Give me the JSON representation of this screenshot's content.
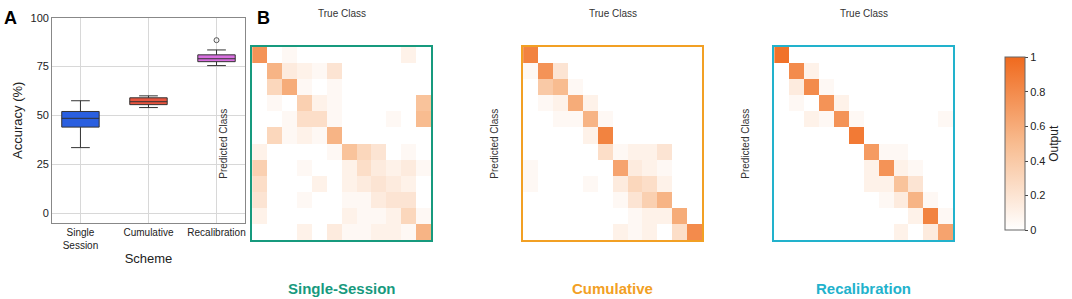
{
  "chart_data": [
    {
      "type": "box",
      "panel": "A",
      "x_label": "Scheme",
      "y_label": "Accuracy (%)",
      "categories": [
        "Single Session",
        "Cumulative",
        "Recalibration"
      ],
      "series": [
        {
          "name": "Single Session",
          "color": "#2a5fe0",
          "min": 33.5,
          "q1": 44,
          "median": 48.5,
          "q3": 52,
          "max": 57.5,
          "outliers": []
        },
        {
          "name": "Cumulative",
          "color": "#e9553f",
          "min": 54,
          "q1": 55.5,
          "median": 57,
          "q3": 59,
          "max": 60,
          "outliers": []
        },
        {
          "name": "Recalibration",
          "color": "#d870e0",
          "min": 75.5,
          "q1": 77.5,
          "median": 79,
          "q3": 81,
          "max": 83.5,
          "outliers": [
            88.5
          ]
        }
      ],
      "ylim": [
        -5,
        100
      ],
      "yticks": [
        0,
        25,
        50,
        75,
        100
      ],
      "grid": true
    },
    {
      "type": "heatmap",
      "panel": "B",
      "title": "Single-Session",
      "color": "#179a7e",
      "x_label": "True Class",
      "y_label": "Predicted Class",
      "tick_labels": false,
      "cells": [
        [
          0.75,
          0,
          0.05,
          0,
          0,
          0,
          0,
          0,
          0,
          0,
          0.1,
          0
        ],
        [
          0,
          0.55,
          0.15,
          0.1,
          0.05,
          0.2,
          0,
          0,
          0,
          0,
          0,
          0
        ],
        [
          0,
          0.3,
          0.6,
          0.05,
          0,
          0.05,
          0,
          0,
          0,
          0,
          0,
          0
        ],
        [
          0,
          0.05,
          0,
          0.35,
          0.1,
          0.05,
          0,
          0,
          0,
          0,
          0,
          0.45
        ],
        [
          0,
          0,
          0.05,
          0.25,
          0.25,
          0.05,
          0,
          0,
          0,
          0.05,
          0,
          0.5
        ],
        [
          0,
          0.3,
          0.05,
          0.1,
          0.05,
          0.55,
          0,
          0,
          0,
          0,
          0,
          0
        ],
        [
          0.1,
          0,
          0,
          0,
          0,
          0.05,
          0.45,
          0.3,
          0.2,
          0,
          0.05,
          0
        ],
        [
          0.35,
          0,
          0,
          0.05,
          0,
          0,
          0.1,
          0.25,
          0.15,
          0.1,
          0.15,
          0.05
        ],
        [
          0.25,
          0,
          0,
          0,
          0.1,
          0,
          0.1,
          0.15,
          0.2,
          0.15,
          0.1,
          0
        ],
        [
          0.2,
          0,
          0,
          0.05,
          0,
          0,
          0.05,
          0.05,
          0.15,
          0.2,
          0.2,
          0
        ],
        [
          0.1,
          0,
          0,
          0,
          0,
          0,
          0.1,
          0.05,
          0.05,
          0.1,
          0.3,
          0.05
        ],
        [
          0,
          0,
          0,
          0.1,
          0,
          0.15,
          0.05,
          0.05,
          0.1,
          0.1,
          0.05,
          0.55
        ]
      ]
    },
    {
      "type": "heatmap",
      "panel": null,
      "title": "Cumulative",
      "color": "#f2a024",
      "x_label": "True Class",
      "y_label": "Predicted Class",
      "tick_labels": false,
      "cells": [
        [
          0.85,
          0,
          0,
          0,
          0,
          0,
          0,
          0,
          0,
          0,
          0,
          0
        ],
        [
          0.05,
          0.75,
          0.2,
          0,
          0,
          0,
          0,
          0,
          0,
          0,
          0,
          0
        ],
        [
          0,
          0.4,
          0.5,
          0.05,
          0,
          0,
          0,
          0,
          0,
          0,
          0,
          0
        ],
        [
          0,
          0.05,
          0.1,
          0.6,
          0.1,
          0,
          0,
          0,
          0,
          0,
          0,
          0
        ],
        [
          0,
          0,
          0.05,
          0.05,
          0.55,
          0.05,
          0,
          0,
          0,
          0,
          0,
          0
        ],
        [
          0,
          0,
          0,
          0,
          0.1,
          0.85,
          0,
          0,
          0,
          0,
          0,
          0
        ],
        [
          0,
          0,
          0,
          0,
          0,
          0.25,
          0.05,
          0.1,
          0.1,
          0.2,
          0,
          0
        ],
        [
          0.05,
          0,
          0,
          0,
          0,
          0,
          0.65,
          0.15,
          0.1,
          0.05,
          0,
          0
        ],
        [
          0.05,
          0,
          0,
          0,
          0.05,
          0,
          0.15,
          0.3,
          0.25,
          0.1,
          0,
          0
        ],
        [
          0,
          0,
          0,
          0,
          0,
          0,
          0.05,
          0.2,
          0.35,
          0.55,
          0,
          0
        ],
        [
          0,
          0,
          0,
          0,
          0,
          0,
          0,
          0.05,
          0.1,
          0.1,
          0.6,
          0
        ],
        [
          0,
          0,
          0,
          0,
          0,
          0,
          0.1,
          0.05,
          0.1,
          0,
          0.25,
          0.8
        ]
      ]
    },
    {
      "type": "heatmap",
      "panel": null,
      "title": "Recalibration",
      "color": "#22b2cc",
      "x_label": "True Class",
      "y_label": "Predicted Class",
      "tick_labels": false,
      "cells": [
        [
          0.95,
          0,
          0,
          0,
          0,
          0,
          0,
          0,
          0,
          0,
          0,
          0
        ],
        [
          0,
          0.8,
          0.1,
          0,
          0,
          0,
          0,
          0,
          0,
          0,
          0,
          0
        ],
        [
          0,
          0.15,
          0.8,
          0.05,
          0,
          0,
          0,
          0,
          0,
          0,
          0,
          0
        ],
        [
          0,
          0.05,
          0,
          0.75,
          0.1,
          0,
          0,
          0,
          0,
          0,
          0,
          0
        ],
        [
          0,
          0,
          0.1,
          0.05,
          0.75,
          0.05,
          0,
          0,
          0,
          0,
          0,
          0.05
        ],
        [
          0,
          0,
          0,
          0,
          0,
          0.9,
          0,
          0,
          0,
          0,
          0,
          0
        ],
        [
          0,
          0,
          0,
          0,
          0,
          0,
          0.7,
          0.05,
          0.05,
          0,
          0,
          0
        ],
        [
          0,
          0,
          0,
          0,
          0,
          0,
          0.1,
          0.75,
          0.1,
          0.05,
          0,
          0
        ],
        [
          0,
          0,
          0,
          0,
          0,
          0,
          0.1,
          0.1,
          0.45,
          0.2,
          0,
          0
        ],
        [
          0,
          0,
          0,
          0,
          0,
          0,
          0,
          0.05,
          0.15,
          0.55,
          0.05,
          0
        ],
        [
          0,
          0,
          0,
          0,
          0,
          0,
          0,
          0,
          0,
          0.1,
          0.85,
          0.05
        ],
        [
          0,
          0,
          0,
          0,
          0,
          0,
          0,
          0,
          0.1,
          0,
          0.15,
          0.65
        ]
      ],
      "colorbar": {
        "title": "Output",
        "range": [
          0,
          1
        ],
        "ticks": [
          0,
          0.2,
          0.4,
          0.6,
          0.8,
          1
        ]
      }
    }
  ]
}
